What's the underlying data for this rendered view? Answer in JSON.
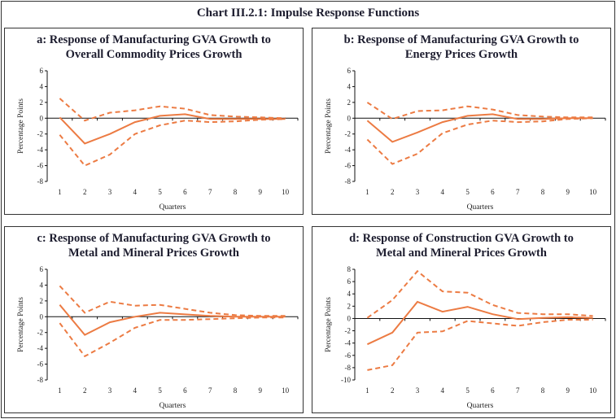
{
  "title": "Chart III.2.1: Impulse Response Functions",
  "chart_data": [
    {
      "type": "line",
      "title_lines": [
        "a: Response of Manufacturing GVA Growth to",
        "Overall Commodity Prices Growth"
      ],
      "xlabel": "Quarters",
      "ylabel": "Percentage Points",
      "categories": [
        "1",
        "2",
        "3",
        "4",
        "5",
        "6",
        "7",
        "8",
        "9",
        "10"
      ],
      "ylim": [
        -8,
        6
      ],
      "yticks": [
        -8,
        -6,
        -4,
        -2,
        0,
        2,
        4,
        6
      ],
      "series": [
        {
          "style": "solid",
          "values": [
            0.1,
            -3.2,
            -2.0,
            -0.5,
            0.3,
            0.5,
            -0.1,
            -0.1,
            -0.1,
            -0.1
          ]
        },
        {
          "style": "dashed",
          "values": [
            2.5,
            -0.3,
            0.7,
            1.0,
            1.5,
            1.2,
            0.4,
            0.2,
            0.1,
            0.0
          ]
        },
        {
          "style": "dashed",
          "values": [
            -2.1,
            -6.0,
            -4.6,
            -2.0,
            -0.9,
            -0.3,
            -0.5,
            -0.4,
            -0.2,
            -0.1
          ]
        }
      ]
    },
    {
      "type": "line",
      "title_lines": [
        "b: Response of Manufacturing GVA Growth to",
        "Energy Prices Growth"
      ],
      "xlabel": "Quarters",
      "ylabel": "Percentage Points",
      "categories": [
        "1",
        "2",
        "3",
        "4",
        "5",
        "6",
        "7",
        "8",
        "9",
        "10"
      ],
      "ylim": [
        -8,
        6
      ],
      "yticks": [
        -8,
        -6,
        -4,
        -2,
        0,
        2,
        4,
        6
      ],
      "series": [
        {
          "style": "solid",
          "values": [
            -0.3,
            -3.0,
            -1.8,
            -0.5,
            0.3,
            0.5,
            -0.1,
            -0.1,
            0.0,
            0.0
          ]
        },
        {
          "style": "dashed",
          "values": [
            2.0,
            -0.1,
            0.9,
            1.0,
            1.5,
            1.1,
            0.4,
            0.2,
            0.1,
            0.1
          ]
        },
        {
          "style": "dashed",
          "values": [
            -2.7,
            -5.8,
            -4.5,
            -1.9,
            -0.8,
            -0.3,
            -0.5,
            -0.4,
            -0.1,
            0.0
          ]
        }
      ]
    },
    {
      "type": "line",
      "title_lines": [
        "c: Response of Manufacturing GVA Growth to",
        "Metal and Mineral Prices Growth"
      ],
      "xlabel": "Quarters",
      "ylabel": "Percentage Points",
      "categories": [
        "1",
        "2",
        "3",
        "4",
        "5",
        "6",
        "7",
        "8",
        "9",
        "10"
      ],
      "ylim": [
        -8,
        6
      ],
      "yticks": [
        -8,
        -6,
        -4,
        -2,
        0,
        2,
        4,
        6
      ],
      "series": [
        {
          "style": "solid",
          "values": [
            1.5,
            -2.3,
            -0.7,
            0.0,
            0.5,
            0.3,
            0.1,
            0.0,
            0.0,
            0.0
          ]
        },
        {
          "style": "dashed",
          "values": [
            3.9,
            0.5,
            1.9,
            1.4,
            1.5,
            1.0,
            0.5,
            0.2,
            0.1,
            0.1
          ]
        },
        {
          "style": "dashed",
          "values": [
            -0.8,
            -5.0,
            -3.3,
            -1.4,
            -0.4,
            -0.4,
            -0.3,
            -0.2,
            -0.1,
            -0.1
          ]
        }
      ]
    },
    {
      "type": "line",
      "title_lines": [
        "d: Response of Construction GVA Growth to",
        "Metal and Mineral Prices Growth"
      ],
      "xlabel": "Quarters",
      "ylabel": "Percentage Points",
      "categories": [
        "1",
        "2",
        "3",
        "4",
        "5",
        "6",
        "7",
        "8",
        "9",
        "10"
      ],
      "ylim": [
        -10,
        8
      ],
      "yticks": [
        -10,
        -8,
        -6,
        -4,
        -2,
        0,
        2,
        4,
        6,
        8
      ],
      "series": [
        {
          "style": "solid",
          "values": [
            -4.2,
            -2.3,
            2.7,
            1.1,
            1.9,
            0.7,
            -0.1,
            0.1,
            0.2,
            0.1
          ]
        },
        {
          "style": "dashed",
          "values": [
            0.1,
            3.0,
            7.7,
            4.4,
            4.2,
            2.2,
            0.9,
            0.7,
            0.7,
            0.4
          ]
        },
        {
          "style": "dashed",
          "values": [
            -8.4,
            -7.6,
            -2.3,
            -2.1,
            -0.4,
            -0.8,
            -1.2,
            -0.6,
            -0.2,
            -0.2
          ]
        }
      ]
    }
  ],
  "colors": {
    "line": "#EC7B43",
    "axis": "#111111",
    "title": "#1c1c2e"
  }
}
